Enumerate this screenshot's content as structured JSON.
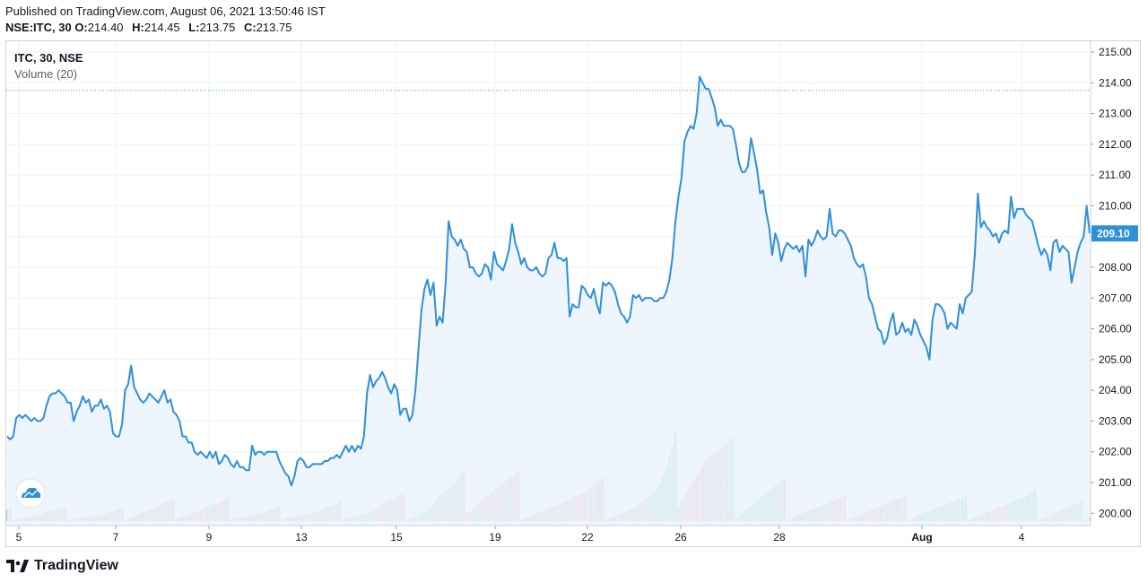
{
  "header": {
    "published": "Published on TradingView.com, August 06, 2021 13:50:46 IST",
    "symbol_interval": "NSE:ITC, 30",
    "o_label": "O:",
    "o_value": "214.40",
    "h_label": "H:",
    "h_value": "214.45",
    "l_label": "L:",
    "l_value": "213.75",
    "c_label": "C:",
    "c_value": "213.75"
  },
  "legend": {
    "symbol": "ITC, 30, NSE",
    "volume": "Volume (20)"
  },
  "brand": {
    "name": "TradingView"
  },
  "colors": {
    "line": "#2f8fd9",
    "area": "#eaf3fb",
    "vol_up": "#a8d9c3",
    "vol_down": "#f2b4c1",
    "grid": "#eef1f5",
    "price_line": "#3aa0e0",
    "last_price_bg": "#2f8fd9"
  },
  "chart_data": {
    "type": "line",
    "title": "ITC, 30, NSE",
    "series": [
      {
        "name": "ITC, 30, NSE",
        "values": [
          202.5,
          202.4,
          202.5,
          203.1,
          203.2,
          203.1,
          203.2,
          203.1,
          203.0,
          203.1,
          203.0,
          203.0,
          203.1,
          203.5,
          203.8,
          203.9,
          203.9,
          204.0,
          203.9,
          203.8,
          203.6,
          203.6,
          203.0,
          203.3,
          203.5,
          203.8,
          203.6,
          203.7,
          203.3,
          203.5,
          203.5,
          203.7,
          203.4,
          203.5,
          203.3,
          202.6,
          202.5,
          202.5,
          202.9,
          204.0,
          204.2,
          204.8,
          204.1,
          203.9,
          203.7,
          203.6,
          203.7,
          203.9,
          203.8,
          203.7,
          203.6,
          203.8,
          204.0,
          203.6,
          203.7,
          203.3,
          203.2,
          203.0,
          202.5,
          202.5,
          202.3,
          202.3,
          202.0,
          201.9,
          202.0,
          201.9,
          201.8,
          202.0,
          201.8,
          202.0,
          201.6,
          201.7,
          201.9,
          201.8,
          201.6,
          201.5,
          201.7,
          201.5,
          201.5,
          201.4,
          201.4,
          202.2,
          201.9,
          202.0,
          202.0,
          201.9,
          202.0,
          202.0,
          202.0,
          202.0,
          201.7,
          201.5,
          201.3,
          201.2,
          200.9,
          201.2,
          201.7,
          201.8,
          201.7,
          201.5,
          201.5,
          201.6,
          201.6,
          201.6,
          201.6,
          201.7,
          201.7,
          201.8,
          201.8,
          201.9,
          201.8,
          202.0,
          202.2,
          202.0,
          202.2,
          202.0,
          202.2,
          202.1,
          202.5,
          203.9,
          204.5,
          204.1,
          204.3,
          204.4,
          204.6,
          204.4,
          204.1,
          203.9,
          204.2,
          204.0,
          203.2,
          203.4,
          203.4,
          203.0,
          203.2,
          204.0,
          205.3,
          206.6,
          207.3,
          207.6,
          207.1,
          207.5,
          206.1,
          206.4,
          206.2,
          207.5,
          209.5,
          209.0,
          208.9,
          208.7,
          208.9,
          208.6,
          208.5,
          208.0,
          208.0,
          207.8,
          207.7,
          207.8,
          208.1,
          208.0,
          207.6,
          208.5,
          208.1,
          208.0,
          207.9,
          208.2,
          208.6,
          209.4,
          208.8,
          208.5,
          208.1,
          208.3,
          208.0,
          207.9,
          207.9,
          208.0,
          207.8,
          207.7,
          207.8,
          208.3,
          208.4,
          208.8,
          208.3,
          208.3,
          208.2,
          208.3,
          206.4,
          206.8,
          206.7,
          206.7,
          207.4,
          207.3,
          207.1,
          207.0,
          207.3,
          206.8,
          206.5,
          207.5,
          207.4,
          207.5,
          207.4,
          207.2,
          206.8,
          206.5,
          206.4,
          206.2,
          206.4,
          207.1,
          207.0,
          207.1,
          206.9,
          207.0,
          207.0,
          207.0,
          206.9,
          206.9,
          207.0,
          207.0,
          207.2,
          207.6,
          208.3,
          209.5,
          210.3,
          210.9,
          212.1,
          212.4,
          212.6,
          212.5,
          213.0,
          214.2,
          214.0,
          213.8,
          213.8,
          213.5,
          213.2,
          212.6,
          212.8,
          212.6,
          212.6,
          212.6,
          212.5,
          212.0,
          211.4,
          211.1,
          211.1,
          211.3,
          212.2,
          211.7,
          211.2,
          210.4,
          210.5,
          209.8,
          209.3,
          208.4,
          209.1,
          208.8,
          208.2,
          208.6,
          208.8,
          208.7,
          208.6,
          208.7,
          208.5,
          208.7,
          207.7,
          208.9,
          208.7,
          208.9,
          209.2,
          209.0,
          208.9,
          209.0,
          209.9,
          209.1,
          209.0,
          209.2,
          209.2,
          209.1,
          208.9,
          208.7,
          208.3,
          208.1,
          208.0,
          208.1,
          207.7,
          207.0,
          206.8,
          206.4,
          206.0,
          205.9,
          205.5,
          205.7,
          206.2,
          206.5,
          205.8,
          205.9,
          206.2,
          205.9,
          206.0,
          205.8,
          206.3,
          206.1,
          205.8,
          205.6,
          205.4,
          205.0,
          206.3,
          206.8,
          206.8,
          206.7,
          206.5,
          206.0,
          206.2,
          206.1,
          206.0,
          206.8,
          206.5,
          207.0,
          207.1,
          207.2,
          208.4,
          210.4,
          209.3,
          209.5,
          209.3,
          209.2,
          209.0,
          209.1,
          208.8,
          209.1,
          209.2,
          209.1,
          210.3,
          209.6,
          209.9,
          209.9,
          209.9,
          209.7,
          209.6,
          209.5,
          209.1,
          208.7,
          208.4,
          208.6,
          208.4,
          207.9,
          208.8,
          208.9,
          208.5,
          208.7,
          208.6,
          208.5,
          207.5,
          208.0,
          208.5,
          208.8,
          209.0,
          210.0,
          209.1
        ],
        "volume_heights": [
          0.45,
          0.55,
          0.05,
          0.08,
          0.08,
          0.1,
          0.15,
          0.15,
          0.2,
          0.2,
          0.25,
          0.25,
          0.3,
          0.35,
          0.4,
          0.45,
          0.45,
          0.5,
          0.5,
          0.5,
          0.05,
          0.08,
          0.1,
          0.12,
          0.15,
          0.15,
          0.18,
          0.18,
          0.2,
          0.2,
          0.22,
          0.22,
          0.25,
          0.3,
          0.35,
          0.4,
          0.45,
          0.5,
          0.5,
          0.05,
          0.1,
          0.15,
          0.2,
          0.25,
          0.3,
          0.35,
          0.4,
          0.45,
          0.5,
          0.55,
          0.6,
          0.7,
          0.75,
          0.8,
          0.85,
          0.9,
          0.1,
          0.15,
          0.18,
          0.2,
          0.25,
          0.3,
          0.35,
          0.4,
          0.45,
          0.5,
          0.55,
          0.6,
          0.65,
          0.7,
          0.75,
          0.8,
          0.9,
          1.0,
          0.05,
          0.1,
          0.12,
          0.15,
          0.15,
          0.2,
          0.2,
          0.25,
          0.25,
          0.3,
          0.3,
          0.35,
          0.4,
          0.45,
          0.5,
          0.55,
          0.6,
          0.05,
          0.1,
          0.15,
          0.15,
          0.2,
          0.2,
          0.25,
          0.25,
          0.3,
          0.3,
          0.35,
          0.35,
          0.4,
          0.45,
          0.5,
          0.55,
          0.6,
          0.65,
          0.7,
          0.8,
          0.05,
          0.1,
          0.15,
          0.15,
          0.2,
          0.2,
          0.25,
          0.25,
          0.3,
          0.35,
          0.4,
          0.45,
          0.55,
          0.65,
          0.75,
          0.8,
          0.85,
          0.9,
          1.0,
          1.05,
          1.1,
          0.05,
          0.1,
          0.1,
          0.2,
          0.2,
          0.3,
          0.35,
          0.45,
          0.55,
          0.7,
          0.85,
          1.0,
          1.1,
          1.2,
          1.3,
          1.45,
          1.55,
          1.7,
          1.85,
          2.0,
          0.3,
          0.4,
          0.5,
          0.6,
          0.7,
          0.8,
          0.9,
          1.0,
          1.1,
          1.2,
          1.3,
          1.4,
          1.5,
          1.6,
          1.7,
          1.8,
          1.9,
          2.0,
          0.05,
          0.1,
          0.15,
          0.2,
          0.25,
          0.3,
          0.35,
          0.4,
          0.45,
          0.5,
          0.55,
          0.6,
          0.65,
          0.7,
          0.75,
          0.8,
          0.85,
          0.9,
          1.0,
          1.05,
          1.1,
          1.15,
          1.25,
          1.3,
          1.4,
          1.5,
          1.6,
          1.7,
          0.05,
          0.1,
          0.15,
          0.2,
          0.25,
          0.3,
          0.35,
          0.4,
          0.45,
          0.5,
          0.55,
          0.65,
          0.75,
          0.85,
          0.95,
          1.05,
          1.2,
          1.35,
          1.5,
          1.8,
          2.2,
          2.6,
          3.0,
          3.6,
          0.6,
          0.8,
          1.0,
          1.2,
          1.4,
          1.6,
          1.8,
          2.0,
          2.2,
          2.4,
          2.5,
          2.6,
          2.7,
          2.8,
          2.9,
          3.0,
          3.1,
          3.2,
          3.3,
          0.1,
          0.2,
          0.3,
          0.4,
          0.5,
          0.6,
          0.7,
          0.8,
          0.9,
          1.0,
          1.1,
          1.2,
          1.3,
          1.4,
          1.5,
          1.6,
          1.7,
          0.05,
          0.1,
          0.15,
          0.2,
          0.25,
          0.3,
          0.35,
          0.4,
          0.45,
          0.5,
          0.55,
          0.6,
          0.65,
          0.7,
          0.75,
          0.8,
          0.85,
          0.9,
          0.95,
          1.0,
          0.05,
          0.1,
          0.15,
          0.2,
          0.25,
          0.3,
          0.35,
          0.4,
          0.45,
          0.5,
          0.55,
          0.6,
          0.65,
          0.7,
          0.75,
          0.8,
          0.85,
          0.9,
          0.95,
          1.0,
          0.05,
          0.1,
          0.15,
          0.2,
          0.25,
          0.3,
          0.35,
          0.4,
          0.45,
          0.5,
          0.55,
          0.6,
          0.65,
          0.7,
          0.75,
          0.8,
          0.85,
          0.9,
          0.95,
          1.0,
          0.05,
          0.1,
          0.15,
          0.2,
          0.25,
          0.3,
          0.35,
          0.4,
          0.45,
          0.5,
          0.55,
          0.6,
          0.65,
          0.7,
          0.75,
          0.8,
          0.85,
          0.9,
          0.95,
          1.0,
          1.1,
          1.2,
          1.3,
          0.05,
          0.1,
          0.15,
          0.2,
          0.25,
          0.3,
          0.35,
          0.4,
          0.45,
          0.5,
          0.55,
          0.6,
          0.65,
          0.7,
          0.8,
          0.05,
          0.1,
          0.15,
          0.2,
          0.25,
          0.3
        ],
        "volume_up": [
          1,
          1,
          0,
          0,
          1,
          0,
          1,
          1,
          0,
          1,
          0,
          1,
          1,
          1,
          0,
          1,
          1,
          1,
          0,
          0,
          0,
          0,
          1,
          1,
          0,
          0,
          0,
          1,
          0,
          0,
          1,
          0,
          0,
          0,
          0,
          0,
          1,
          0,
          1,
          0,
          1,
          0,
          1,
          0,
          0,
          0,
          0,
          1,
          0,
          0,
          0,
          0,
          1,
          0,
          0,
          1,
          1,
          0,
          0,
          0,
          0,
          1,
          0,
          0,
          0,
          0,
          0,
          1,
          0,
          1,
          0,
          0,
          0,
          1,
          0,
          0,
          0,
          1,
          0,
          1,
          0,
          0,
          0,
          1,
          0,
          0,
          0,
          1,
          0,
          1,
          1,
          0,
          0,
          0,
          0,
          1,
          1,
          1,
          0,
          0,
          1,
          0,
          1,
          0,
          1,
          0,
          1,
          0,
          1,
          0,
          1,
          1,
          1,
          1,
          0,
          1,
          0,
          1,
          1,
          1,
          1,
          1,
          0,
          1,
          0,
          0,
          1,
          0,
          1,
          1,
          0,
          0,
          0,
          0,
          0,
          1,
          1,
          1,
          1,
          1,
          1,
          1,
          0,
          1,
          0,
          1,
          1,
          0,
          1,
          1,
          1,
          0,
          0,
          0,
          0,
          1,
          1,
          0,
          0,
          0,
          1,
          0,
          0,
          0,
          1,
          0,
          1,
          0,
          0,
          0,
          0,
          0,
          0,
          1,
          0,
          1,
          0,
          1,
          0,
          1,
          0,
          0,
          0,
          1,
          0,
          0,
          0,
          1,
          0,
          0,
          0,
          0,
          0,
          1,
          0,
          0,
          1,
          0,
          0,
          0,
          0,
          1,
          0,
          1,
          0,
          1,
          0,
          1,
          0,
          1,
          0,
          1,
          0,
          1,
          1,
          1,
          1,
          1,
          1,
          1,
          1,
          1,
          1,
          0,
          1,
          0,
          0,
          0,
          0,
          0,
          0,
          0,
          1,
          0,
          1,
          0,
          0,
          1,
          0,
          1,
          1,
          0,
          0,
          1,
          1,
          1,
          1,
          1,
          1,
          1,
          1,
          1,
          1,
          1,
          1,
          0,
          1,
          0,
          1,
          1,
          1,
          0,
          1,
          1,
          1,
          1,
          0,
          1,
          0,
          1,
          0,
          1,
          1,
          0,
          0,
          0,
          0,
          0,
          0,
          0,
          1,
          0,
          0,
          0,
          0,
          0,
          1,
          0,
          0,
          0,
          1,
          0,
          0,
          0,
          1,
          0,
          1,
          0,
          1,
          0,
          0,
          0,
          1,
          1,
          1,
          1,
          1,
          1,
          1,
          1,
          1,
          0,
          1,
          1,
          1,
          1,
          1,
          1,
          0,
          0,
          1,
          0,
          1,
          0,
          0,
          0,
          0,
          0,
          0,
          0,
          0,
          1,
          1,
          1,
          1,
          1,
          1,
          1,
          1,
          1,
          1,
          1,
          0,
          1,
          0,
          1,
          1,
          0,
          1,
          0,
          1,
          0,
          1,
          1,
          1,
          1,
          0,
          0,
          0,
          0,
          0,
          0,
          0,
          0,
          1,
          1,
          1,
          1,
          1,
          1
        ]
      }
    ],
    "x_tick_labels": [
      "5",
      "7",
      "9",
      "13",
      "15",
      "19",
      "22",
      "26",
      "28",
      "Aug",
      "4"
    ],
    "y_tick_labels": [
      "215.00",
      "214.00",
      "213.00",
      "212.00",
      "211.00",
      "210.00",
      "209.00",
      "208.00",
      "207.00",
      "206.00",
      "205.00",
      "204.00",
      "203.00",
      "202.00",
      "201.00",
      "200.00"
    ],
    "ylim": [
      199.6,
      215.35
    ],
    "last_price_label": "209.10",
    "reference_line_value": 213.75,
    "grid": true,
    "legend_position": "top-left"
  }
}
